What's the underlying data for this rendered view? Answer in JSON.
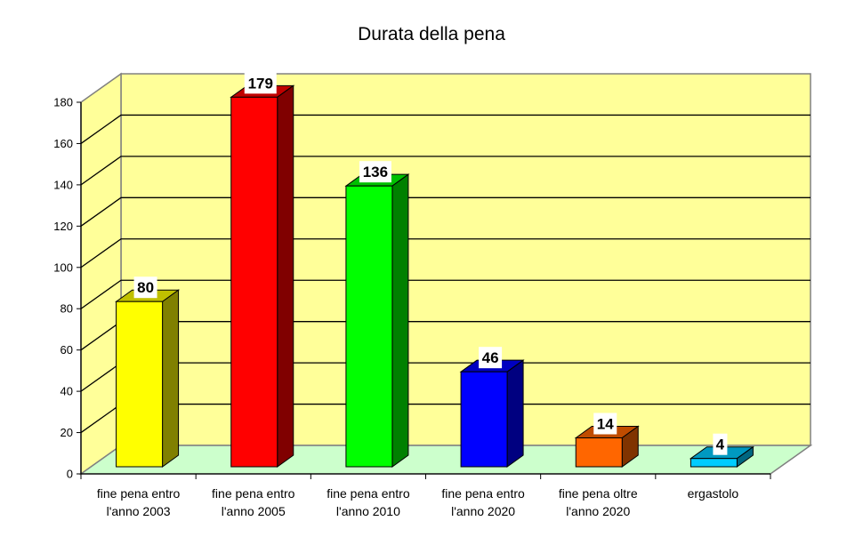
{
  "chart_data": {
    "type": "bar",
    "title": "Durata della pena",
    "xlabel": "",
    "ylabel": "",
    "ylim": [
      0,
      180
    ],
    "yticks": [
      0,
      20,
      40,
      60,
      80,
      100,
      120,
      140,
      160,
      180
    ],
    "grid": true,
    "legend": null,
    "style": "3d-column",
    "categories": [
      "fine pena entro l'anno 2003",
      "fine pena entro l'anno 2005",
      "fine pena entro l'anno 2010",
      "fine pena entro l'anno 2020",
      "fine pena oltre l'anno 2020",
      "ergastolo"
    ],
    "category_lines": [
      [
        "fine pena entro",
        "l'anno 2003"
      ],
      [
        "fine pena entro",
        "l'anno 2005"
      ],
      [
        "fine pena entro",
        "l'anno 2010"
      ],
      [
        "fine pena entro",
        "l'anno 2020"
      ],
      [
        "fine pena oltre",
        "l'anno 2020"
      ],
      [
        "ergastolo"
      ]
    ],
    "values": [
      80,
      179,
      136,
      46,
      14,
      4
    ],
    "data_labels": [
      "80",
      "179",
      "136",
      "46",
      "14",
      "4"
    ],
    "colors": [
      {
        "front": "#ffff00",
        "side": "#808000",
        "top": "#c0c000"
      },
      {
        "front": "#ff0000",
        "side": "#800000",
        "top": "#c00000"
      },
      {
        "front": "#00ff00",
        "side": "#008000",
        "top": "#00c000"
      },
      {
        "front": "#0000ff",
        "side": "#000080",
        "top": "#0000c0"
      },
      {
        "front": "#ff6600",
        "side": "#803300",
        "top": "#c04c00"
      },
      {
        "front": "#00ccff",
        "side": "#006680",
        "top": "#0099c0"
      }
    ],
    "wall_color": "#ffff99",
    "floor_color": "#ccffcc"
  }
}
